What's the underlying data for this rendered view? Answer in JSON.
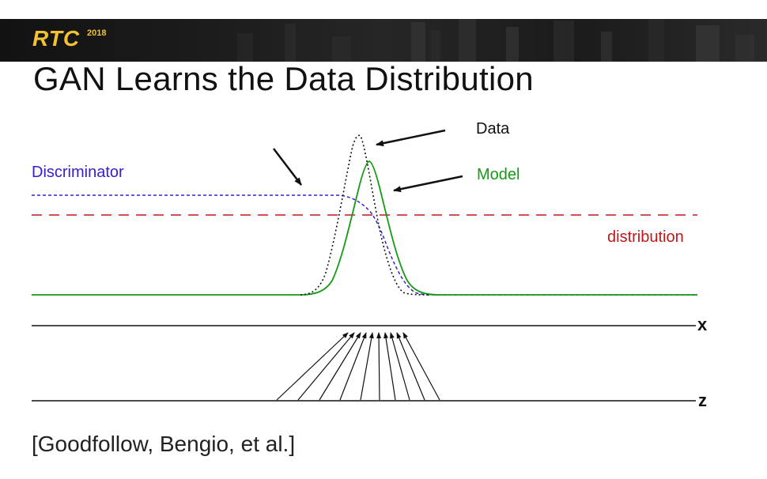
{
  "header": {
    "logo_text": "RTC",
    "logo_year": "2018",
    "brand_color": "#f2c230"
  },
  "slide": {
    "title": "GAN Learns the Data Distribution",
    "citation": "[Goodfollow, Bengio, et al.]"
  },
  "diagram": {
    "labels": {
      "data": "Data",
      "model": "Model",
      "discriminator": "Discriminator",
      "distribution": "distribution",
      "x_axis": "x",
      "z_axis": "z"
    },
    "colors": {
      "data_curve": "#111111",
      "model_curve": "#159a15",
      "discriminator_curve": "#3a20c8",
      "distribution_line": "#c01818",
      "axes": "#111111"
    }
  }
}
